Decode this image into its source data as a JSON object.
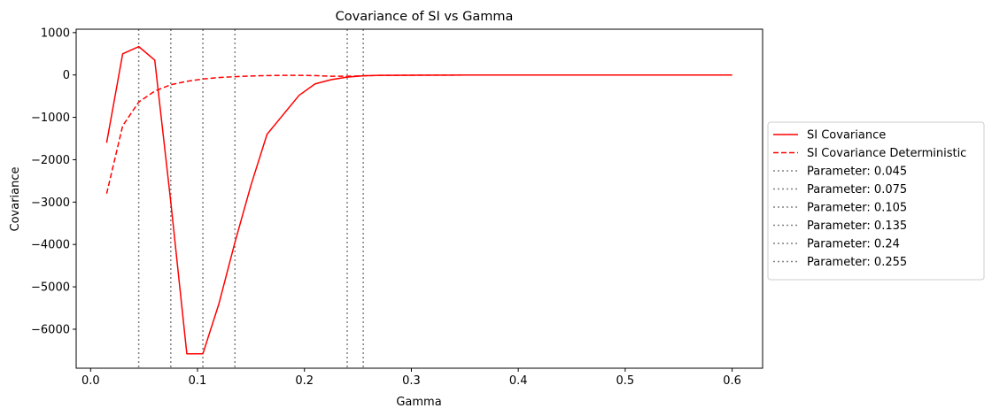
{
  "chart_data": {
    "type": "line",
    "title": "Covariance of SI vs Gamma",
    "xlabel": "Gamma",
    "ylabel": "Covariance",
    "xlim": [
      -0.0135,
      0.6285
    ],
    "ylim": [
      -6920,
      1080
    ],
    "x_ticks": [
      0.0,
      0.1,
      0.2,
      0.3,
      0.4,
      0.5,
      0.6
    ],
    "x_tick_labels": [
      "0.0",
      "0.1",
      "0.2",
      "0.3",
      "0.4",
      "0.5",
      "0.6"
    ],
    "y_ticks": [
      -6000,
      -5000,
      -4000,
      -3000,
      -2000,
      -1000,
      0,
      1000
    ],
    "y_tick_labels": [
      "−6000",
      "−5000",
      "−4000",
      "−3000",
      "−2000",
      "−1000",
      "0",
      "1000"
    ],
    "grid": false,
    "legend_position": "right-outside",
    "series": [
      {
        "name": "SI Covariance",
        "color": "#ff0000",
        "style": "solid",
        "x": [
          0.015,
          0.03,
          0.045,
          0.06,
          0.075,
          0.09,
          0.105,
          0.12,
          0.135,
          0.15,
          0.165,
          0.18,
          0.195,
          0.21,
          0.225,
          0.24,
          0.255,
          0.27,
          0.3,
          0.35,
          0.4,
          0.45,
          0.5,
          0.55,
          0.6
        ],
        "y": [
          -1600,
          500,
          670,
          350,
          -3000,
          -6580,
          -6580,
          -5400,
          -3950,
          -2600,
          -1400,
          -940,
          -480,
          -210,
          -110,
          -50,
          -20,
          -10,
          -5,
          -2,
          -1,
          0,
          0,
          0,
          0
        ]
      },
      {
        "name": "SI Covariance Deterministic",
        "color": "#ff0000",
        "style": "dashed",
        "x": [
          0.015,
          0.03,
          0.045,
          0.06,
          0.075,
          0.09,
          0.105,
          0.12,
          0.135,
          0.15,
          0.165,
          0.18,
          0.195,
          0.21,
          0.225,
          0.24,
          0.255,
          0.27,
          0.3,
          0.35,
          0.4,
          0.45,
          0.5,
          0.55,
          0.6
        ],
        "y": [
          -2800,
          -1200,
          -640,
          -380,
          -230,
          -150,
          -95,
          -60,
          -40,
          -25,
          -15,
          -10,
          -10,
          -15,
          -30,
          -30,
          -20,
          -10,
          -5,
          -2,
          -1,
          0,
          0,
          0,
          0
        ]
      }
    ],
    "vlines": [
      {
        "name": "Parameter: 0.045",
        "x": 0.045,
        "color": "#808080",
        "style": "dotted"
      },
      {
        "name": "Parameter: 0.075",
        "x": 0.075,
        "color": "#808080",
        "style": "dotted"
      },
      {
        "name": "Parameter: 0.105",
        "x": 0.105,
        "color": "#808080",
        "style": "dotted"
      },
      {
        "name": "Parameter: 0.135",
        "x": 0.135,
        "color": "#808080",
        "style": "dotted"
      },
      {
        "name": "Parameter: 0.24",
        "x": 0.24,
        "color": "#808080",
        "style": "dotted"
      },
      {
        "name": "Parameter: 0.255",
        "x": 0.255,
        "color": "#808080",
        "style": "dotted"
      }
    ]
  }
}
